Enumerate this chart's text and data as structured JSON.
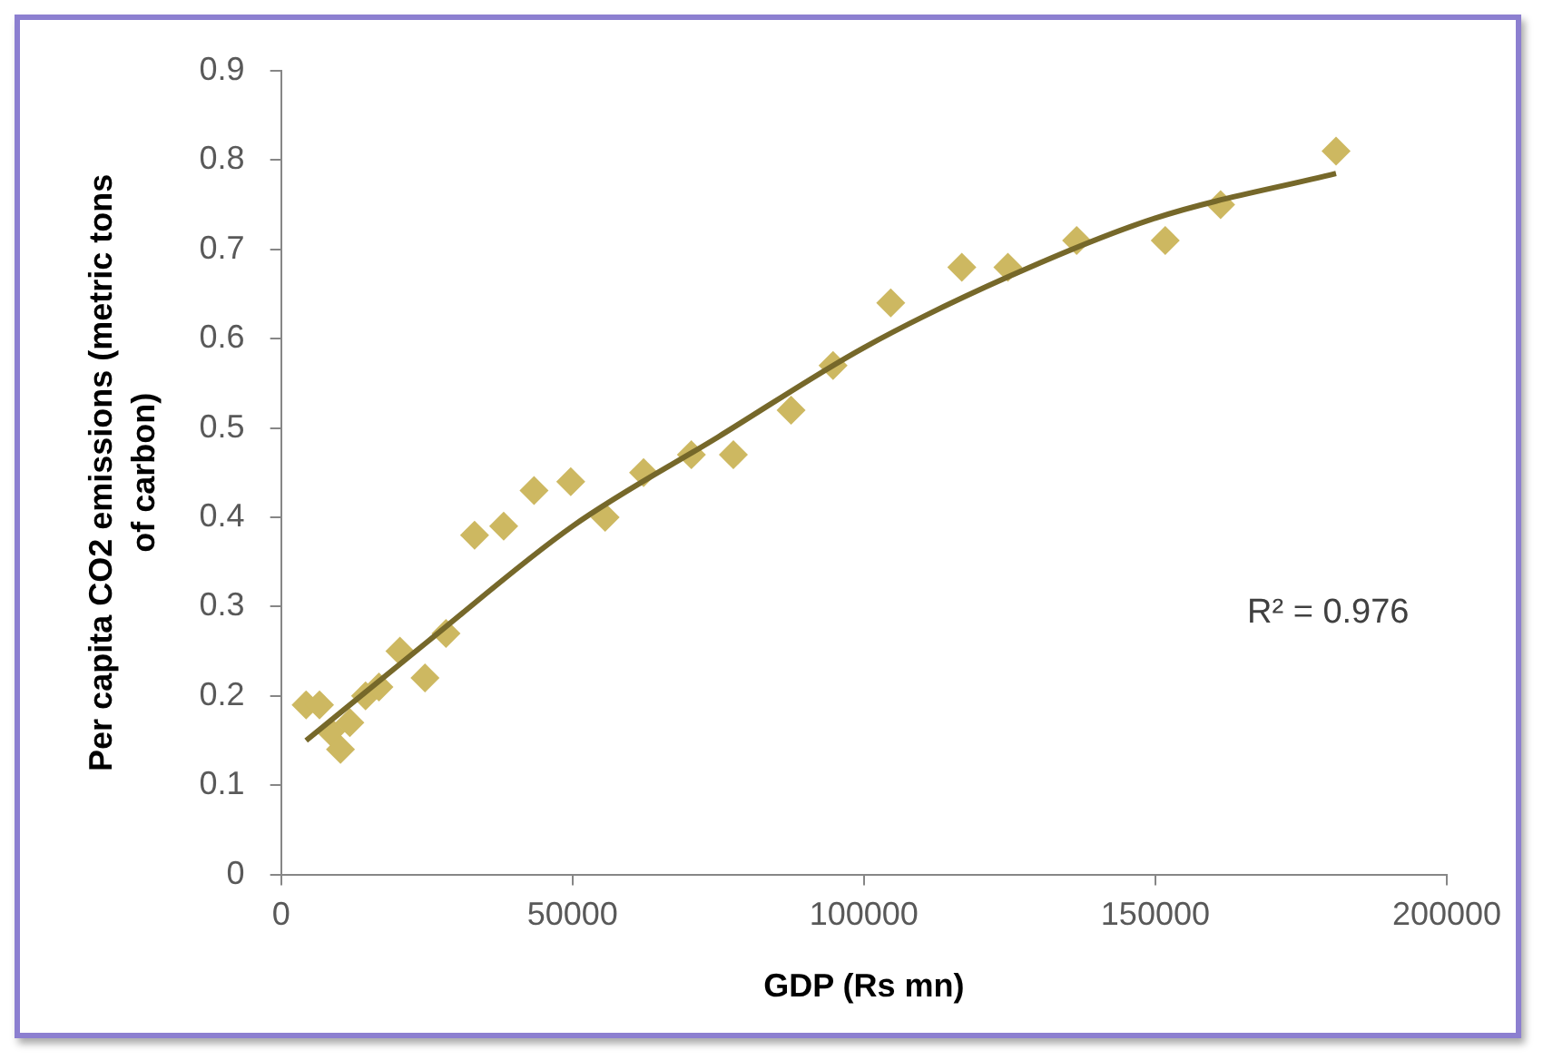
{
  "chart_data": {
    "type": "scatter",
    "xlabel": "GDP (Rs mn)",
    "ylabel": "Per capita CO2 emissions (metric tons of carbon)",
    "xlim": [
      0,
      200000
    ],
    "xticks": [
      0,
      50000,
      100000,
      150000,
      200000
    ],
    "ylim": [
      0,
      0.9
    ],
    "yticks": [
      0,
      0.1,
      0.2,
      0.3,
      0.4,
      0.5,
      0.6,
      0.7,
      0.8,
      0.9
    ],
    "grid": false,
    "legend": false,
    "series": [
      {
        "marker": "diamond",
        "color": "#cdb861",
        "x": [
          4300,
          6600,
          8500,
          10200,
          11800,
          14500,
          16800,
          20400,
          24700,
          28300,
          33200,
          38200,
          43400,
          49700,
          55600,
          62200,
          70400,
          77600,
          87500,
          94700,
          104600,
          116800,
          124700,
          136500,
          151700,
          161200,
          181000
        ],
        "values": [
          0.19,
          0.19,
          0.16,
          0.14,
          0.17,
          0.2,
          0.21,
          0.25,
          0.22,
          0.27,
          0.38,
          0.39,
          0.43,
          0.44,
          0.4,
          0.45,
          0.47,
          0.47,
          0.52,
          0.57,
          0.64,
          0.68,
          0.68,
          0.71,
          0.71,
          0.75,
          0.81
        ]
      },
      {
        "type": "line",
        "marker": "none",
        "color": "#76682a",
        "line_style": "solid",
        "x": [
          4300,
          25000,
          50000,
          75000,
          100000,
          125000,
          150000,
          181000
        ],
        "values": [
          0.15,
          0.26,
          0.39,
          0.49,
          0.59,
          0.67,
          0.735,
          0.785
        ]
      }
    ],
    "annotations": [
      "R² = 0.976"
    ]
  }
}
